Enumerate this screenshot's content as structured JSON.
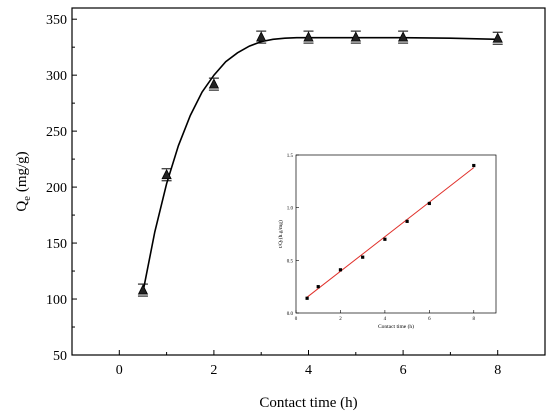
{
  "chart_data": [
    {
      "type": "scatter",
      "xlabel": "Contact time (h)",
      "ylabel_main": "Q",
      "ylabel_sub": "e",
      "ylabel_unit": " (mg/g)",
      "xlim": [
        -1,
        9
      ],
      "ylim": [
        50,
        360
      ],
      "xticks": [
        0,
        2,
        4,
        6,
        8
      ],
      "yticks": [
        50,
        100,
        150,
        200,
        250,
        300,
        350
      ],
      "grid": false,
      "series": [
        {
          "marker": "triangle",
          "x": [
            0.5,
            1,
            2,
            3,
            4,
            5,
            6,
            8
          ],
          "y": [
            108,
            211,
            292,
            334,
            334,
            334,
            334,
            333
          ]
        }
      ],
      "fit_curve": {
        "x": [
          0.5,
          0.75,
          1,
          1.25,
          1.5,
          1.75,
          2,
          2.25,
          2.5,
          2.75,
          3,
          3.25,
          3.5,
          3.75,
          4,
          5,
          6,
          7,
          8
        ],
        "y": [
          106,
          160,
          203,
          237,
          264,
          285,
          300,
          312,
          320,
          326,
          330,
          332,
          333,
          333.5,
          333.5,
          333.5,
          333.5,
          333,
          332
        ]
      }
    },
    {
      "type": "line",
      "xlabel": "Contact time (h)",
      "ylabel": "t/Qₜ(h.g/mg)",
      "xlim": [
        0,
        9
      ],
      "ylim": [
        0,
        1.5
      ],
      "xticks": [
        0,
        2,
        4,
        6,
        8
      ],
      "yticks": [
        0.0,
        0.5,
        1.0,
        1.5
      ],
      "ytick_labels": [
        "0.0",
        "0.5",
        "1.0",
        "1.5"
      ],
      "grid": false,
      "series": [
        {
          "marker": "square",
          "x": [
            0.5,
            1,
            2,
            3,
            4,
            5,
            6,
            8
          ],
          "y": [
            0.14,
            0.25,
            0.41,
            0.53,
            0.7,
            0.87,
            1.04,
            1.4
          ]
        }
      ],
      "fit_line": {
        "x": [
          0.5,
          8
        ],
        "y": [
          0.15,
          1.38
        ]
      },
      "colors": {
        "fit": "#e0302a"
      }
    }
  ]
}
